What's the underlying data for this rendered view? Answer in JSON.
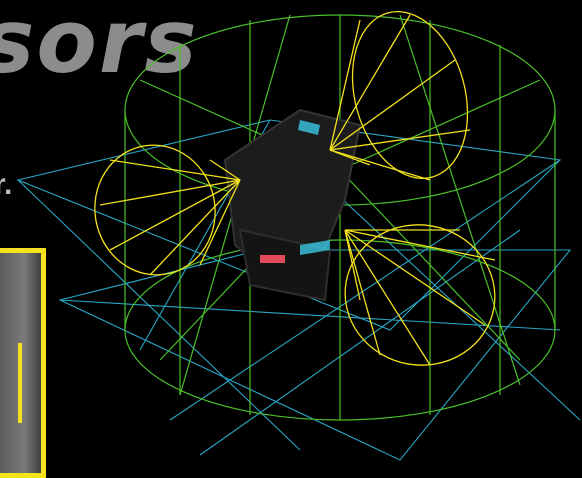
{
  "header": {
    "title_fragment": "sors"
  },
  "body_text": {
    "fragment": "r."
  },
  "colors": {
    "background": "#000000",
    "fov_cone": "#f3e21d",
    "cylinder_wire": "#4bc02a",
    "ground_wire": "#2aa6c6",
    "robot_body": "#1c1c1c",
    "accent_cyan": "#40e0ff",
    "accent_red": "#e04a5a"
  },
  "icons": {
    "thumbnail": "sensor-camera-thumbnail"
  }
}
